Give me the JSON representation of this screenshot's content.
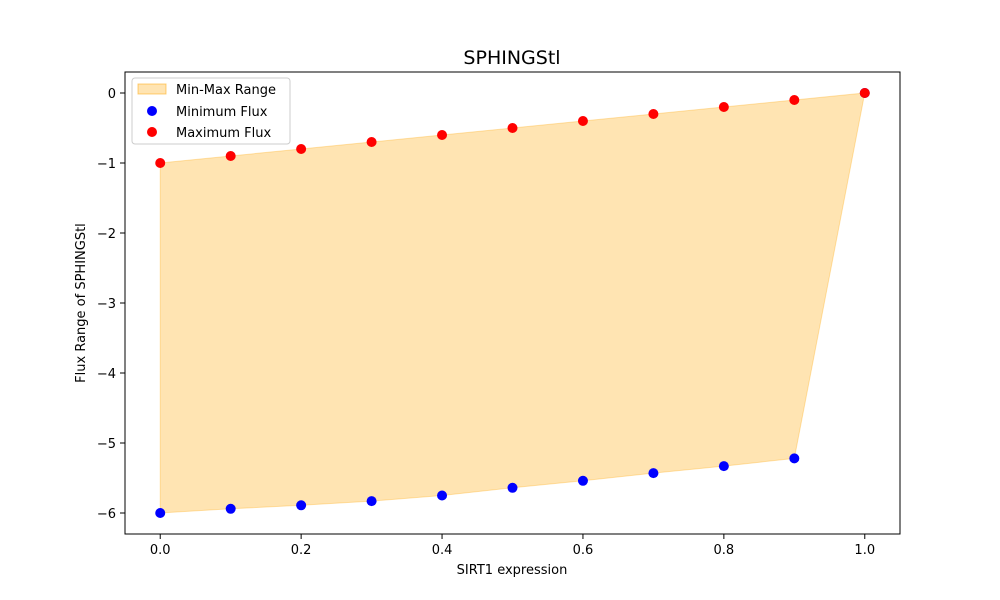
{
  "chart_data": {
    "type": "area",
    "title": "SPHINGStl",
    "xlabel": "SIRT1 expression",
    "ylabel": "Flux Range of SPHINGStl",
    "xlim": [
      -0.05,
      1.05
    ],
    "ylim": [
      -6.3,
      0.3
    ],
    "xticks": [
      0.0,
      0.2,
      0.4,
      0.6,
      0.8,
      1.0
    ],
    "xtick_labels": [
      "0.0",
      "0.2",
      "0.4",
      "0.6",
      "0.8",
      "1.0"
    ],
    "yticks": [
      0,
      -1,
      -2,
      -3,
      -4,
      -5,
      -6
    ],
    "ytick_labels": [
      "0",
      "−1",
      "−2",
      "−3",
      "−4",
      "−5",
      "−6"
    ],
    "grid": false,
    "legend_position": "upper-left",
    "x": [
      0.0,
      0.1,
      0.2,
      0.3,
      0.4,
      0.5,
      0.6,
      0.7,
      0.8,
      0.9,
      1.0
    ],
    "series": [
      {
        "name": "Min-Max Range",
        "kind": "fill_between",
        "color": "#ffa500",
        "opacity": 0.3
      },
      {
        "name": "Minimum Flux",
        "kind": "scatter",
        "color": "#0000ff",
        "values": [
          -6.0,
          -5.94,
          -5.89,
          -5.83,
          -5.75,
          -5.64,
          -5.54,
          -5.43,
          -5.33,
          -5.22,
          0.0
        ]
      },
      {
        "name": "Maximum Flux",
        "kind": "scatter",
        "color": "#ff0000",
        "values": [
          -1.0,
          -0.9,
          -0.8,
          -0.7,
          -0.6,
          -0.5,
          -0.4,
          -0.3,
          -0.2,
          -0.1,
          0.0
        ]
      }
    ]
  }
}
